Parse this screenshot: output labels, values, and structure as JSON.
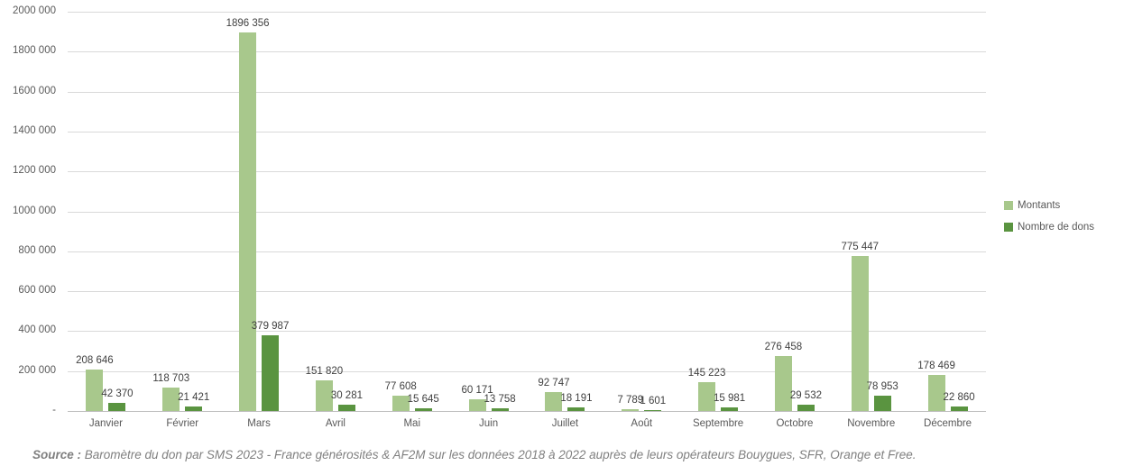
{
  "colors": {
    "series_light": "#a8c88c",
    "series_dark": "#5a9440",
    "gridline": "#d9d9d9",
    "axis_line": "#bfbfbf",
    "tick_text": "#595959",
    "data_label_text": "#404040",
    "source_text": "#7f7f7f"
  },
  "legend": {
    "items": [
      {
        "label": "Montants",
        "color": "#a8c88c",
        "swatch": "square"
      },
      {
        "label": "Nombre de dons",
        "color": "#5a9440",
        "swatch": "square"
      }
    ]
  },
  "source_note": {
    "prefix": "Source :",
    "text": " Baromètre du don par SMS 2023 - France générosités & AF2M sur les données 2018 à 2022 auprès de leurs opérateurs Bouygues, SFR, Orange et Free."
  },
  "chart_data": {
    "type": "bar",
    "title": "",
    "xlabel": "",
    "ylabel": "",
    "grid": true,
    "legend_position": "right",
    "ylim": [
      0,
      2000000
    ],
    "ytick_step": 200000,
    "ytick_labels": [
      "-",
      "200 000",
      "400 000",
      "600 000",
      "800 000",
      "1000 000",
      "1200 000",
      "1400 000",
      "1600 000",
      "1800 000",
      "2000 000"
    ],
    "categories": [
      "Janvier",
      "Février",
      "Mars",
      "Avril",
      "Mai",
      "Juin",
      "Juillet",
      "Août",
      "Septembre",
      "Octobre",
      "Novembre",
      "Décembre"
    ],
    "series": [
      {
        "name": "Montants",
        "color": "#a8c88c",
        "values": [
          208646,
          118703,
          1896356,
          151820,
          77608,
          60171,
          92747,
          7789,
          145223,
          276458,
          775447,
          178469
        ],
        "labels": [
          "208 646",
          "118 703",
          "1896 356",
          "151 820",
          "77 608",
          "60 171",
          "92 747",
          "7 789",
          "145 223",
          "276 458",
          "775 447",
          "178 469"
        ]
      },
      {
        "name": "Nombre de dons",
        "color": "#5a9440",
        "values": [
          42370,
          21421,
          379987,
          30281,
          15645,
          13758,
          18191,
          1601,
          15981,
          29532,
          78953,
          22860
        ],
        "labels": [
          "42 370",
          "21 421",
          "379 987",
          "30 281",
          "15 645",
          "13 758",
          "18 191",
          "1 601",
          "15 981",
          "29 532",
          "78 953",
          "22 860"
        ]
      }
    ]
  }
}
